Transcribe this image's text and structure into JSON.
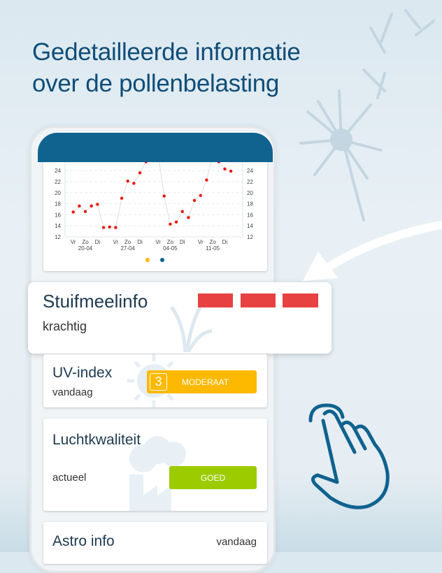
{
  "headline": {
    "line1": "Gedetailleerde informatie",
    "line2": "over de pollenbelasting"
  },
  "colors": {
    "brand": "#10628f",
    "points": "#ee1111",
    "high": "#e84142",
    "moderate": "#fdb900",
    "good": "#9ccc00"
  },
  "chart_data": {
    "type": "scatter",
    "y_ticks": [
      12,
      14,
      16,
      18,
      20,
      22,
      24
    ],
    "ylim": [
      12,
      25.6
    ],
    "grid": true,
    "x_day_labels": [
      "Vr",
      "Zo",
      "Di",
      "Vr",
      "Zo",
      "Di",
      "Vr",
      "Zo",
      "Di",
      "Vr",
      "Zo",
      "Di"
    ],
    "x_date_labels": [
      "20-04",
      "27-04",
      "04-05",
      "11-05"
    ],
    "values": [
      16.5,
      17.6,
      16.6,
      17.6,
      17.9,
      13.7,
      13.8,
      13.7,
      19.0,
      22.1,
      21.7,
      23.6,
      25.6,
      null,
      null,
      19.4,
      14.3,
      14.7,
      16.6,
      15.5,
      18.6,
      19.5,
      22.3,
      null,
      25.6,
      24.3,
      23.9
    ],
    "pagination": {
      "pages": 2,
      "active": 1
    }
  },
  "cards": {
    "pollen": {
      "title": "Stuifmeelinfo",
      "subtitle": "krachtig",
      "level_bars": 3,
      "icon": "grass-icon"
    },
    "uv": {
      "title": "UV-index",
      "subtitle": "vandaag",
      "value": "3",
      "label": "MODERAAT",
      "icon": "sun-icon"
    },
    "air": {
      "title": "Luchtkwaliteit",
      "subtitle": "actueel",
      "label": "GOED",
      "icon": "factory-icon"
    },
    "astro": {
      "title": "Astro info",
      "subtitle": "vandaag"
    }
  },
  "icons": [
    "dandelion-icon",
    "arrow-icon",
    "hand-tap-icon"
  ]
}
